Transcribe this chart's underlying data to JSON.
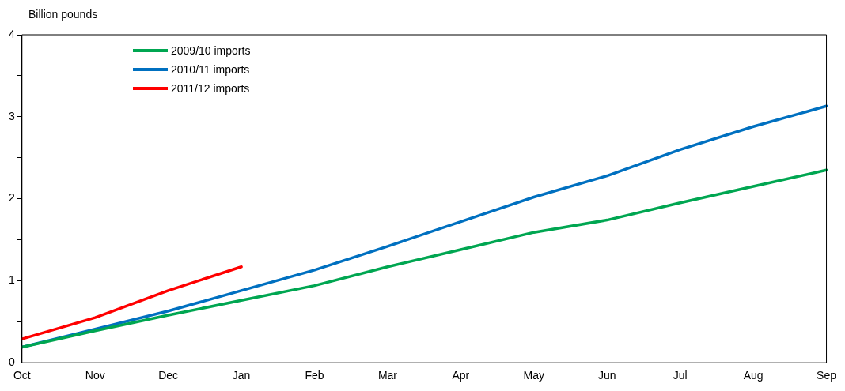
{
  "chart_data": {
    "type": "line",
    "ylabel": "Billion pounds",
    "categories": [
      "Oct",
      "Nov",
      "Dec",
      "Jan",
      "Feb",
      "Mar",
      "Apr",
      "May",
      "Jun",
      "Jul",
      "Aug",
      "Sep"
    ],
    "series": [
      {
        "name": "2009/10 imports",
        "color": "#00a651",
        "values": [
          0.19,
          0.39,
          0.58,
          0.76,
          0.94,
          1.17,
          1.38,
          1.59,
          1.74,
          1.95,
          2.15,
          2.35
        ]
      },
      {
        "name": "2010/11 imports",
        "color": "#0070c0",
        "values": [
          0.19,
          0.41,
          0.63,
          0.88,
          1.13,
          1.42,
          1.72,
          2.02,
          2.28,
          2.6,
          2.88,
          3.13
        ]
      },
      {
        "name": "2011/12 imports",
        "color": "#ff0000",
        "values": [
          0.29,
          0.55,
          0.88,
          1.17,
          null,
          null,
          null,
          null,
          null,
          null,
          null,
          null
        ]
      }
    ],
    "ylim": [
      0,
      4
    ],
    "yticks": [
      0,
      {
        "value": 0.5,
        "label": null
      },
      1,
      {
        "value": 1.5,
        "label": null
      },
      2,
      {
        "value": 2.5,
        "label": null
      },
      3,
      {
        "value": 3.5,
        "label": null
      },
      4
    ],
    "grid": false,
    "legend": "top left",
    "marker": "none",
    "line_style": "solid"
  }
}
